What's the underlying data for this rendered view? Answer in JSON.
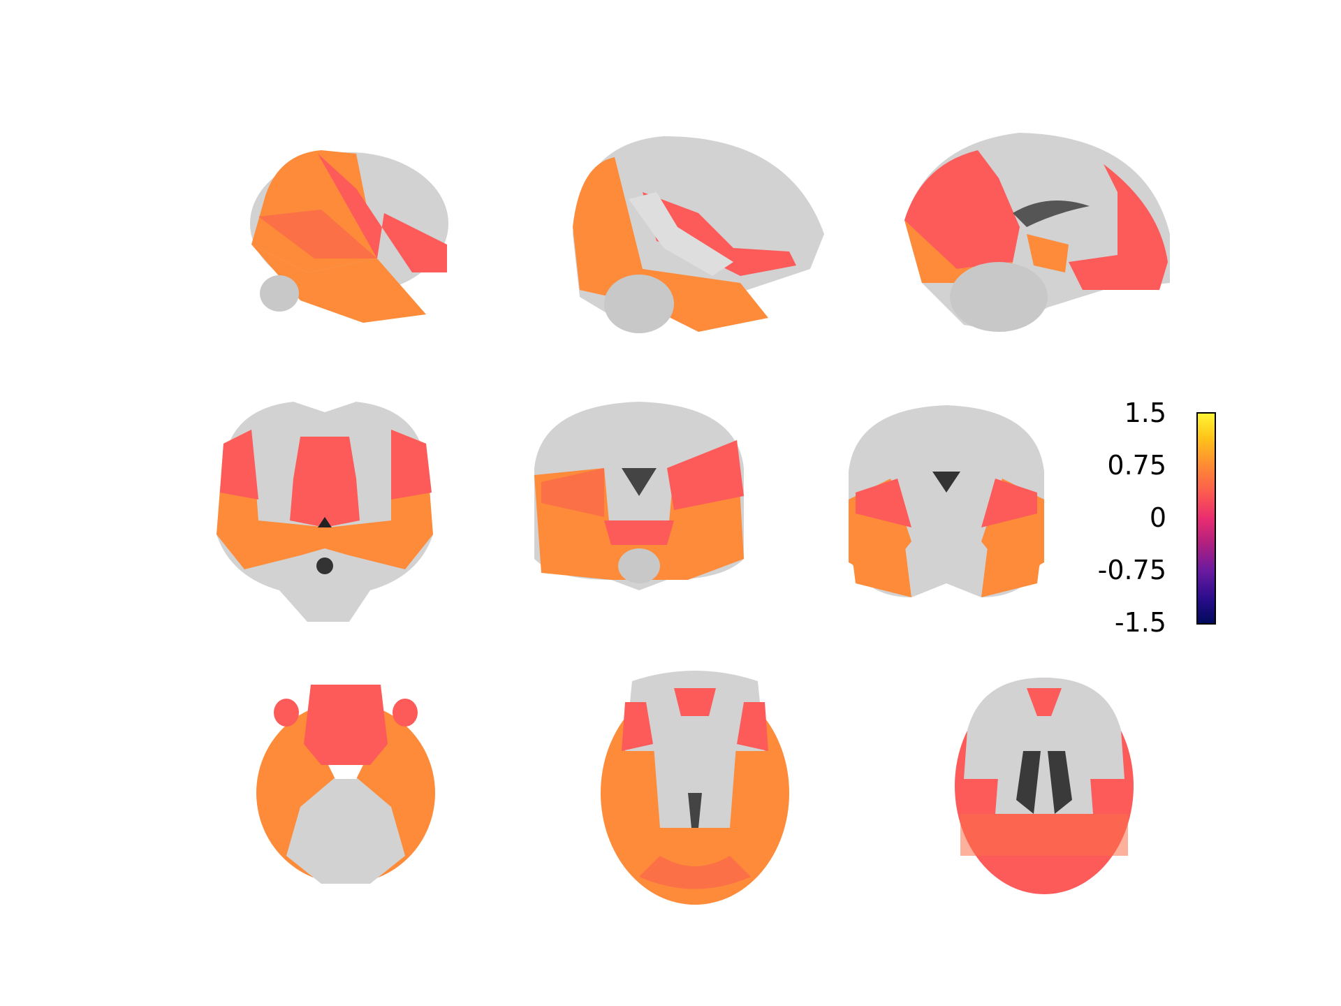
{
  "figure": {
    "views": [
      {
        "name": "sagittal",
        "slices": 3
      },
      {
        "name": "coronal",
        "slices": 3
      },
      {
        "name": "axial",
        "slices": 3
      }
    ],
    "colormap": {
      "name": "plasma-like",
      "colors": [
        "#000a5c",
        "#6a1aa0",
        "#ea2d70",
        "#fe8a34",
        "#fff533"
      ]
    },
    "overlay_colors": {
      "red": "#fd5a5a",
      "orange": "#fd8b3a",
      "mid": "#fc7048"
    },
    "colorbar": {
      "ticks": [
        "1.5",
        "0.75",
        "0",
        "-0.75",
        "-1.5"
      ],
      "range": [
        -1.5,
        1.5
      ]
    }
  }
}
